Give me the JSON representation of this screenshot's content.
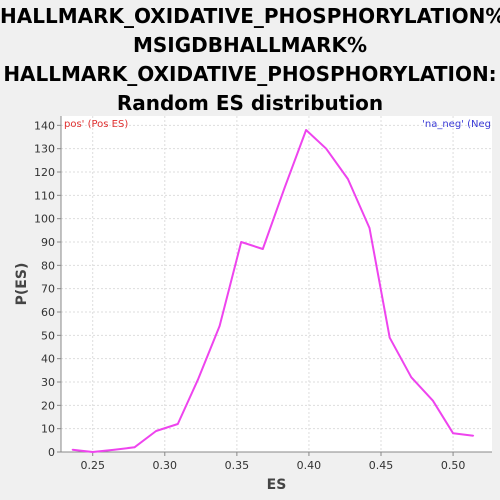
{
  "chart_data": {
    "type": "line",
    "title_lines": [
      "HALLMARK_OXIDATIVE_PHOSPHORYLATION%",
      "MSIGDBHALLMARK%",
      "HALLMARK_OXIDATIVE_PHOSPHORYLATION:",
      "Random ES distribution"
    ],
    "xlabel": "ES",
    "ylabel": "P(ES)",
    "xlim": [
      0.228,
      0.527
    ],
    "ylim": [
      0,
      144
    ],
    "x_ticks": [
      0.25,
      0.3,
      0.35,
      0.4,
      0.45,
      0.5
    ],
    "x_tick_labels": [
      "0.25",
      "0.30",
      "0.35",
      "0.40",
      "0.45",
      "0.50"
    ],
    "y_ticks": [
      0,
      10,
      20,
      30,
      40,
      50,
      60,
      70,
      80,
      90,
      100,
      110,
      120,
      130,
      140
    ],
    "y_tick_labels": [
      "0",
      "10",
      "20",
      "30",
      "40",
      "50",
      "60",
      "70",
      "80",
      "90",
      "100",
      "110",
      "120",
      "130",
      "140"
    ],
    "grid": true,
    "legend": [
      {
        "label": "pos' (Pos ES)",
        "color": "#e03030",
        "position": "top-left"
      },
      {
        "label": "'na_neg' (Neg",
        "color": "#3b3bd6",
        "position": "top-right"
      }
    ],
    "series": [
      {
        "color": "#ee44ee",
        "x": [
          0.236,
          0.25,
          0.265,
          0.279,
          0.294,
          0.309,
          0.323,
          0.338,
          0.353,
          0.368,
          0.383,
          0.398,
          0.412,
          0.427,
          0.442,
          0.456,
          0.471,
          0.486,
          0.5,
          0.514
        ],
        "y": [
          1,
          0,
          1,
          2,
          9,
          12,
          31,
          54,
          90,
          87,
          113,
          138,
          130,
          117,
          96,
          49,
          32,
          22,
          8,
          7
        ]
      }
    ]
  },
  "colors": {
    "background": "#f0f0f0",
    "plot_background": "#ffffff",
    "grid": "#dddddd",
    "axis": "#888888"
  }
}
